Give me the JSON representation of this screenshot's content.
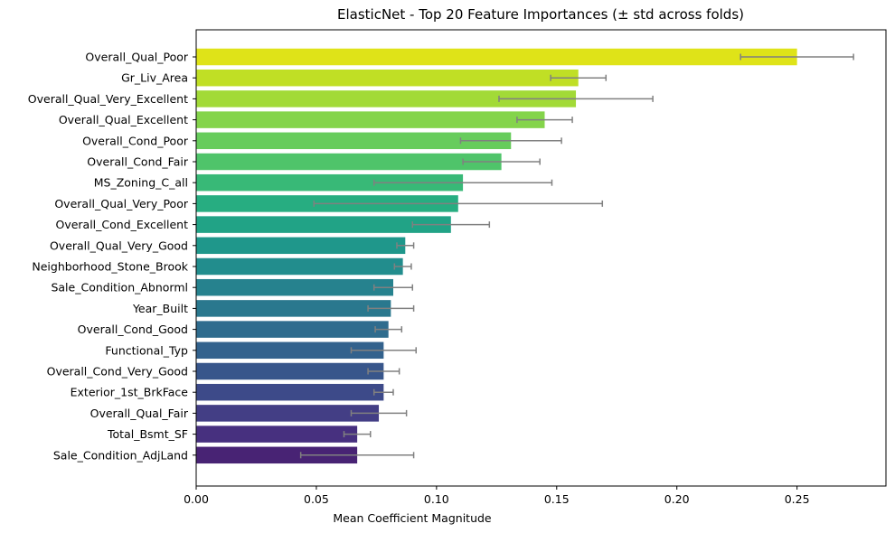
{
  "chart_data": {
    "type": "bar",
    "orientation": "horizontal",
    "title": "ElasticNet - Top 20 Feature Importances (± std across folds)",
    "xlabel": "Mean Coefficient Magnitude",
    "ylabel": "",
    "xlim": [
      0,
      0.287
    ],
    "xticks": [
      0.0,
      0.05,
      0.1,
      0.15,
      0.2,
      0.25
    ],
    "xtick_labels": [
      "0.00",
      "0.05",
      "0.10",
      "0.15",
      "0.20",
      "0.25"
    ],
    "grid": false,
    "error_bar_color": "#808080",
    "categories": [
      "Overall_Qual_Poor",
      "Gr_Liv_Area",
      "Overall_Qual_Very_Excellent",
      "Overall_Qual_Excellent",
      "Overall_Cond_Poor",
      "Overall_Cond_Fair",
      "MS_Zoning_C_all",
      "Overall_Qual_Very_Poor",
      "Overall_Cond_Excellent",
      "Overall_Qual_Very_Good",
      "Neighborhood_Stone_Brook",
      "Sale_Condition_Abnorml",
      "Year_Built",
      "Overall_Cond_Good",
      "Functional_Typ",
      "Overall_Cond_Very_Good",
      "Exterior_1st_BrkFace",
      "Overall_Qual_Fair",
      "Total_Bsmt_SF",
      "Sale_Condition_AdjLand"
    ],
    "values": [
      0.25,
      0.159,
      0.158,
      0.145,
      0.131,
      0.127,
      0.111,
      0.109,
      0.106,
      0.087,
      0.086,
      0.082,
      0.081,
      0.08,
      0.078,
      0.078,
      0.078,
      0.076,
      0.067,
      0.067
    ],
    "errors": [
      0.0235,
      0.0115,
      0.032,
      0.0115,
      0.021,
      0.016,
      0.037,
      0.06,
      0.016,
      0.0035,
      0.0035,
      0.008,
      0.0095,
      0.0055,
      0.0135,
      0.0065,
      0.004,
      0.0115,
      0.0055,
      0.0235
    ],
    "colors": [
      "#dfe318",
      "#c0df25",
      "#a2da37",
      "#84d44b",
      "#67cc5c",
      "#4fc46a",
      "#38b977",
      "#27ad81",
      "#21a386",
      "#1f978b",
      "#228d8d",
      "#26828e",
      "#2a788e",
      "#2f6c8e",
      "#33628d",
      "#38568b",
      "#3d4a89",
      "#433e85",
      "#47307f",
      "#482374"
    ]
  }
}
